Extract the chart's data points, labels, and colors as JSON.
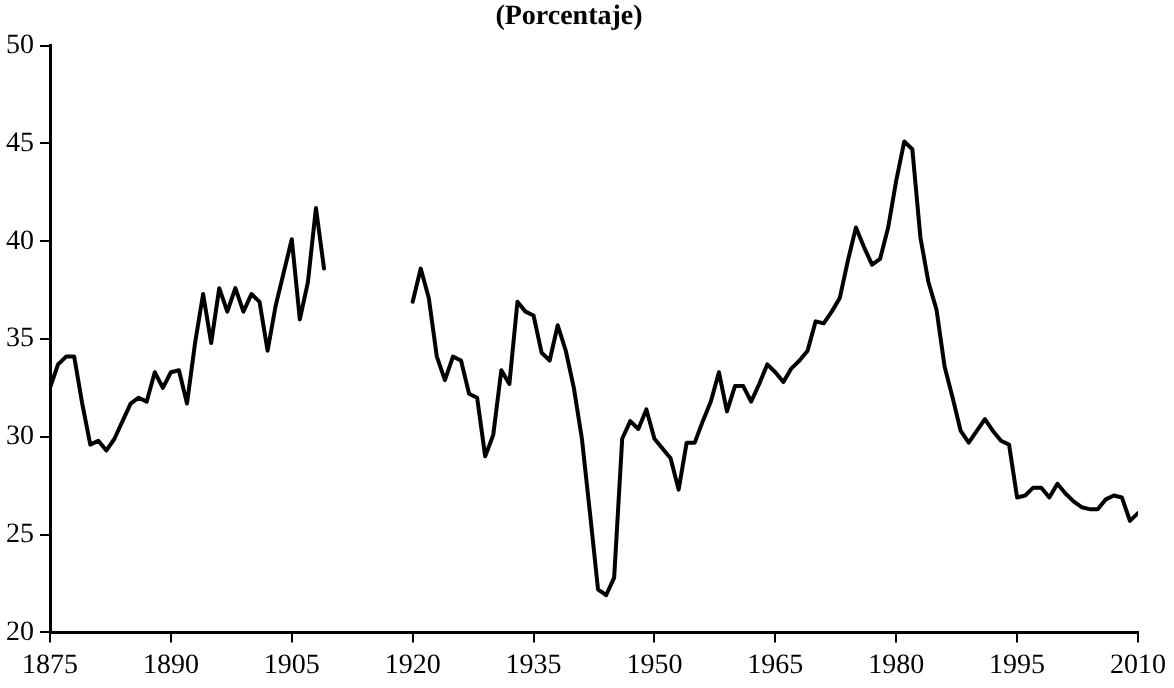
{
  "chart_data": {
    "type": "line",
    "title": "(Porcentaje)",
    "x": [
      1875,
      1876,
      1877,
      1878,
      1879,
      1880,
      1881,
      1882,
      1883,
      1884,
      1885,
      1886,
      1887,
      1888,
      1889,
      1890,
      1891,
      1892,
      1893,
      1894,
      1895,
      1896,
      1897,
      1898,
      1899,
      1900,
      1901,
      1902,
      1903,
      1904,
      1905,
      1906,
      1907,
      1908,
      1909,
      1910,
      1911,
      1912,
      1913,
      1914,
      1915,
      1916,
      1917,
      1918,
      1919,
      1920,
      1921,
      1922,
      1923,
      1924,
      1925,
      1926,
      1927,
      1928,
      1929,
      1930,
      1931,
      1932,
      1933,
      1934,
      1935,
      1936,
      1937,
      1938,
      1939,
      1940,
      1941,
      1942,
      1943,
      1944,
      1945,
      1946,
      1947,
      1948,
      1949,
      1950,
      1951,
      1952,
      1953,
      1954,
      1955,
      1956,
      1957,
      1958,
      1959,
      1960,
      1961,
      1962,
      1963,
      1964,
      1965,
      1966,
      1967,
      1968,
      1969,
      1970,
      1971,
      1972,
      1973,
      1974,
      1975,
      1976,
      1977,
      1978,
      1979,
      1980,
      1981,
      1982,
      1983,
      1984,
      1985,
      1986,
      1987,
      1988,
      1989,
      1990,
      1991,
      1992,
      1993,
      1994,
      1995,
      1996,
      1997,
      1998,
      1999,
      2000,
      2001,
      2002,
      2003,
      2004,
      2005,
      2006,
      2007,
      2008,
      2009,
      2010
    ],
    "series": [
      {
        "color": "#000000",
        "values": [
          32.5,
          33.7,
          34.1,
          34.1,
          31.7,
          29.6,
          29.8,
          29.3,
          29.9,
          30.8,
          31.7,
          32.0,
          31.8,
          33.3,
          32.5,
          33.3,
          33.4,
          31.7,
          34.8,
          37.3,
          34.8,
          37.6,
          36.4,
          37.6,
          36.4,
          37.3,
          36.9,
          34.4,
          36.7,
          38.4,
          40.1,
          36.0,
          37.9,
          41.7,
          38.6,
          null,
          null,
          null,
          null,
          null,
          null,
          null,
          null,
          null,
          null,
          36.9,
          38.6,
          37.1,
          34.1,
          32.9,
          34.1,
          33.9,
          32.2,
          32.0,
          29.0,
          30.1,
          33.4,
          32.7,
          36.9,
          36.4,
          36.2,
          34.3,
          33.9,
          35.7,
          34.4,
          32.5,
          29.9,
          26.1,
          22.2,
          21.9,
          22.8,
          29.9,
          30.8,
          30.4,
          31.4,
          29.9,
          29.4,
          28.9,
          27.3,
          29.7,
          29.7,
          30.8,
          31.8,
          33.3,
          31.3,
          32.6,
          32.6,
          31.8,
          32.7,
          33.7,
          33.3,
          32.8,
          33.5,
          33.9,
          34.4,
          35.9,
          35.8,
          36.4,
          37.1,
          39.0,
          40.7,
          39.7,
          38.8,
          39.1,
          40.7,
          43.1,
          45.1,
          44.7,
          40.2,
          37.9,
          36.5,
          33.6,
          32.0,
          30.3,
          29.7,
          30.3,
          30.9,
          30.3,
          29.8,
          29.6,
          26.9,
          27.0,
          27.4,
          27.4,
          26.9,
          27.6,
          27.1,
          26.7,
          26.4,
          26.3,
          26.3,
          26.8,
          27.0,
          26.9,
          25.7,
          26.1
        ]
      }
    ],
    "xlim": [
      1875,
      2010
    ],
    "xticks": [
      1875,
      1890,
      1905,
      1920,
      1935,
      1950,
      1965,
      1980,
      1995,
      2010
    ],
    "ylim": [
      20,
      50
    ],
    "yticks": [
      20,
      25,
      30,
      35,
      40,
      45,
      50
    ],
    "grid": false,
    "legend": false,
    "marker": "none",
    "line_style": "solid"
  }
}
